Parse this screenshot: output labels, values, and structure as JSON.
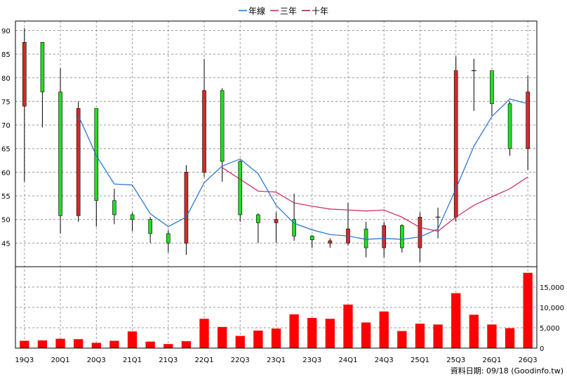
{
  "chart_data": {
    "type": "candlestick+line+bar",
    "legend": [
      {
        "name": "年線",
        "color": "#1f6fd0"
      },
      {
        "name": "三年",
        "color": "#cc1f5a"
      },
      {
        "name": "十年",
        "color": "#8e1f4a"
      }
    ],
    "price_axis": {
      "ticks": [
        45,
        50,
        55,
        60,
        65,
        70,
        75,
        80,
        85,
        90
      ],
      "range": [
        40,
        92
      ]
    },
    "volume_axis": {
      "ticks": [
        0,
        5000,
        10000,
        15000
      ],
      "tick_labels": [
        "0",
        "5,000",
        "10,000",
        "15,000"
      ],
      "range": [
        0,
        20000
      ]
    },
    "x_labels": [
      "19Q3",
      "20Q1",
      "20Q3",
      "21Q1",
      "21Q3",
      "22Q1",
      "22Q3",
      "23Q1",
      "23Q3",
      "24Q1",
      "24Q3",
      "25Q1",
      "25Q3",
      "26Q1",
      "26Q3"
    ],
    "candles": [
      {
        "open": 74.0,
        "close": 87.5,
        "high": 90.5,
        "low": 58.0
      },
      {
        "open": 87.5,
        "close": 77.0,
        "high": 87.5,
        "low": 69.5
      },
      {
        "open": 77.0,
        "close": 50.8,
        "high": 82.0,
        "low": 47.0
      },
      {
        "open": 50.8,
        "close": 73.5,
        "high": 75.0,
        "low": 49.5
      },
      {
        "open": 73.5,
        "close": 54.0,
        "high": 73.5,
        "low": 48.5
      },
      {
        "open": 54.0,
        "close": 51.0,
        "high": 56.5,
        "low": 49.0
      },
      {
        "open": 51.0,
        "close": 50.0,
        "high": 51.5,
        "low": 47.5
      },
      {
        "open": 50.0,
        "close": 47.0,
        "high": 50.5,
        "low": 45.0
      },
      {
        "open": 47.0,
        "close": 45.0,
        "high": 47.8,
        "low": 43.0
      },
      {
        "open": 45.0,
        "close": 60.0,
        "high": 61.5,
        "low": 42.5
      },
      {
        "open": 60.0,
        "close": 77.3,
        "high": 84.0,
        "low": 59.0
      },
      {
        "open": 77.3,
        "close": 62.3,
        "high": 77.8,
        "low": 58.0
      },
      {
        "open": 62.3,
        "close": 51.0,
        "high": 62.5,
        "low": 49.5
      },
      {
        "open": 51.0,
        "close": 49.3,
        "high": 51.3,
        "low": 45.0
      },
      {
        "open": 49.3,
        "close": 50.0,
        "high": 51.5,
        "low": 45.0
      },
      {
        "open": 50.0,
        "close": 46.5,
        "high": 55.5,
        "low": 45.5
      },
      {
        "open": 46.5,
        "close": 45.7,
        "high": 46.7,
        "low": 44.0
      },
      {
        "open": 45.0,
        "close": 45.5,
        "high": 46.0,
        "low": 44.0
      },
      {
        "open": 45.0,
        "close": 48.0,
        "high": 53.5,
        "low": 44.5
      },
      {
        "open": 48.0,
        "close": 44.0,
        "high": 49.5,
        "low": 42.0
      },
      {
        "open": 44.0,
        "close": 48.7,
        "high": 49.5,
        "low": 42.0
      },
      {
        "open": 48.7,
        "close": 44.0,
        "high": 49.0,
        "low": 43.0
      },
      {
        "open": 44.0,
        "close": 50.5,
        "high": 51.5,
        "low": 41.0
      },
      {
        "open": 50.5,
        "close": 50.5,
        "high": 52.5,
        "low": 46.0
      },
      {
        "open": 50.5,
        "close": 81.5,
        "high": 84.5,
        "low": 49.5
      },
      {
        "open": 81.5,
        "close": 81.5,
        "high": 84.0,
        "low": 73.0
      },
      {
        "open": 81.5,
        "close": 74.5,
        "high": 81.5,
        "low": 72.0
      },
      {
        "open": 74.5,
        "close": 65.0,
        "high": 75.0,
        "low": 63.5
      },
      {
        "open": 65.0,
        "close": 77.0,
        "high": 80.5,
        "low": 60.5
      }
    ],
    "series": [
      {
        "name": "年線",
        "values": [
          null,
          null,
          null,
          72.0,
          63.5,
          57.5,
          57.3,
          51.2,
          48.5,
          50.5,
          57.8,
          61.3,
          62.8,
          59.7,
          53.0,
          49.2,
          47.8,
          46.8,
          46.5,
          45.8,
          46.0,
          45.8,
          46.3,
          48.0,
          56.5,
          65.5,
          71.8,
          75.5,
          74.5
        ]
      },
      {
        "name": "三年",
        "values": [
          null,
          null,
          null,
          null,
          null,
          null,
          null,
          null,
          null,
          null,
          null,
          61.0,
          58.5,
          56.0,
          55.8,
          53.5,
          52.8,
          52.2,
          52.0,
          51.8,
          52.0,
          50.5,
          48.3,
          47.5,
          50.5,
          53.0,
          54.8,
          56.5,
          59.0
        ]
      },
      {
        "name": "十年",
        "values": []
      }
    ],
    "volumes": [
      1800,
      1900,
      2300,
      2200,
      1300,
      1800,
      4100,
      1600,
      1000,
      1700,
      7200,
      5200,
      3000,
      4300,
      4800,
      8300,
      7400,
      7200,
      10700,
      6300,
      9000,
      4200,
      6000,
      5800,
      13500,
      8200,
      5800,
      4900,
      18500
    ],
    "footer": "資料日期: 09/18 (Goodinfo.tw)",
    "colors": {
      "up": "#d42a2a",
      "down": "#22dd22",
      "volume": "#ff0000",
      "grid": "#9a9a9a"
    }
  }
}
